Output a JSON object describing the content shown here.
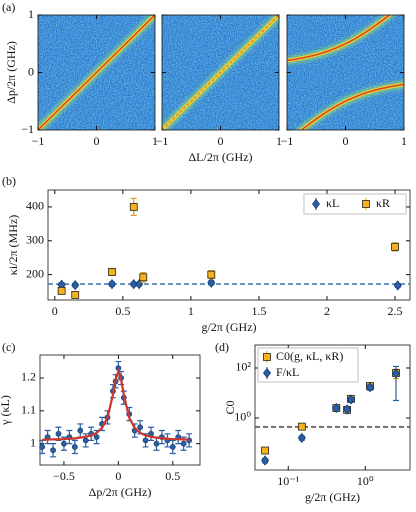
{
  "chart_data": [
    {
      "type": "heatmap",
      "label": "(a)",
      "xlabel": "ΔL/2π (GHz)",
      "ylabel": "Δp/2π (GHz)",
      "xlim": [
        -1,
        1
      ],
      "ylim": [
        -1,
        1
      ],
      "xticks": [
        {
          "value": -1,
          "label": "−1"
        },
        0,
        1
      ],
      "yticks": [
        {
          "value": -1,
          "label": "−1"
        },
        0,
        1
      ]
    },
    {
      "type": "errorbar",
      "label": "(b)",
      "xlabel": "g/2π (GHz)",
      "ylabel": "κi/2π (MHz)",
      "xlim": [
        -0.05,
        2.61
      ],
      "ylim": [
        125,
        450
      ],
      "xticks": [
        0,
        0.5,
        1,
        1.5,
        2,
        2.5
      ],
      "yticks": [
        200,
        300,
        400
      ],
      "legend": "upper right",
      "hline": 172,
      "hline_color": "#4a7fb8",
      "series": [
        {
          "name": "κL",
          "marker": "diamond",
          "color": "#2b5fa5",
          "x": [
            0.05,
            0.15,
            0.42,
            0.58,
            0.62,
            1.15,
            2.52
          ],
          "values": [
            170,
            169,
            172,
            172,
            172,
            176,
            168
          ],
          "errors": [
            6,
            5,
            6,
            5,
            5,
            6,
            5
          ]
        },
        {
          "name": "κR",
          "marker": "square",
          "color": "#f5b21b",
          "x": [
            0.05,
            0.15,
            0.42,
            0.58,
            0.65,
            1.15,
            2.5
          ],
          "values": [
            152,
            140,
            208,
            400,
            192,
            200,
            282
          ],
          "errors": [
            8,
            8,
            10,
            25,
            14,
            12,
            12
          ]
        }
      ]
    },
    {
      "type": "errorbar",
      "label": "(c)",
      "xlabel": "Δp/2π (GHz)",
      "ylabel": "γ (κL)",
      "xlim": [
        -0.72,
        0.75
      ],
      "ylim": [
        0.935,
        1.27
      ],
      "xticks": [
        {
          "value": -0.5,
          "label": "−0.5"
        },
        0,
        0.5
      ],
      "yticks": [
        1,
        1.1,
        1.2
      ],
      "series": [
        {
          "marker": "circle",
          "color": "#2b5fa5",
          "x": [
            -0.7,
            -0.65,
            -0.6,
            -0.55,
            -0.5,
            -0.45,
            -0.4,
            -0.35,
            -0.3,
            -0.25,
            -0.2,
            -0.15,
            -0.1,
            -0.05,
            -0.025,
            0,
            0.025,
            0.05,
            0.1,
            0.15,
            0.2,
            0.25,
            0.3,
            0.35,
            0.4,
            0.45,
            0.5,
            0.55,
            0.6,
            0.65
          ],
          "values": [
            0.99,
            1.02,
            0.98,
            1.03,
            1.0,
            1.02,
            0.99,
            1.04,
            1.01,
            1.03,
            1.02,
            1.06,
            1.08,
            1.16,
            1.19,
            1.23,
            1.2,
            1.14,
            1.09,
            1.04,
            1.05,
            1.01,
            1.03,
            1.0,
            1.02,
            1.01,
            0.99,
            1.02,
            1.0,
            1.01
          ],
          "errors": [
            0.02,
            0.02,
            0.02,
            0.02,
            0.02,
            0.02,
            0.02,
            0.02,
            0.02,
            0.02,
            0.02,
            0.02,
            0.02,
            0.02,
            0.02,
            0.02,
            0.02,
            0.02,
            0.02,
            0.02,
            0.02,
            0.02,
            0.02,
            0.02,
            0.02,
            0.02,
            0.02,
            0.02,
            0.02,
            0.02
          ]
        }
      ],
      "fit": {
        "color": "#d0352a",
        "x": [
          -0.7,
          -0.6,
          -0.5,
          -0.4,
          -0.3,
          -0.25,
          -0.2,
          -0.15,
          -0.1,
          -0.05,
          -0.025,
          0,
          0.025,
          0.05,
          0.1,
          0.15,
          0.2,
          0.25,
          0.3,
          0.4,
          0.5,
          0.6,
          0.65
        ],
        "values": [
          1.012,
          1.013,
          1.014,
          1.016,
          1.021,
          1.025,
          1.033,
          1.048,
          1.079,
          1.149,
          1.196,
          1.22,
          1.196,
          1.149,
          1.079,
          1.048,
          1.033,
          1.025,
          1.021,
          1.016,
          1.014,
          1.013,
          1.012
        ]
      }
    },
    {
      "type": "errorbar",
      "label": "(d)",
      "xlabel": "g/2π (GHz)",
      "ylabel": "C0",
      "xscale": "log",
      "yscale": "log",
      "xlim": [
        0.037,
        3.8
      ],
      "ylim": [
        0.0083,
        830
      ],
      "xticks": [
        {
          "value": 0.1,
          "label": "10⁻¹"
        },
        {
          "value": 1,
          "label": "10⁰"
        }
      ],
      "yticks": [
        {
          "value": 1,
          "label": "10⁰"
        },
        {
          "value": 100,
          "label": "10²"
        }
      ],
      "legend": "upper left",
      "hline": 0.44,
      "hline_color": "#555555",
      "series": [
        {
          "name": "C0(g, κL, κR)",
          "marker": "square",
          "color": "#f5b21b",
          "x": [
            0.05,
            0.15,
            0.42,
            0.58,
            0.65,
            1.15,
            2.5
          ],
          "values": [
            0.05,
            0.45,
            2.5,
            2.1,
            5.8,
            19,
            63
          ],
          "errors": [
            0.01,
            0.08,
            0.4,
            0.4,
            1,
            4,
            25
          ]
        },
        {
          "name": "F/κL",
          "marker": "diamond",
          "color": "#2b5fa5",
          "x": [
            0.05,
            0.15,
            0.42,
            0.58,
            0.65,
            1.15,
            2.5
          ],
          "values": [
            0.02,
            0.16,
            2.5,
            2.2,
            5.5,
            17,
            60
          ],
          "errors": [
            0.004,
            0.03,
            0.4,
            0.4,
            1,
            4,
            55
          ]
        }
      ]
    }
  ]
}
